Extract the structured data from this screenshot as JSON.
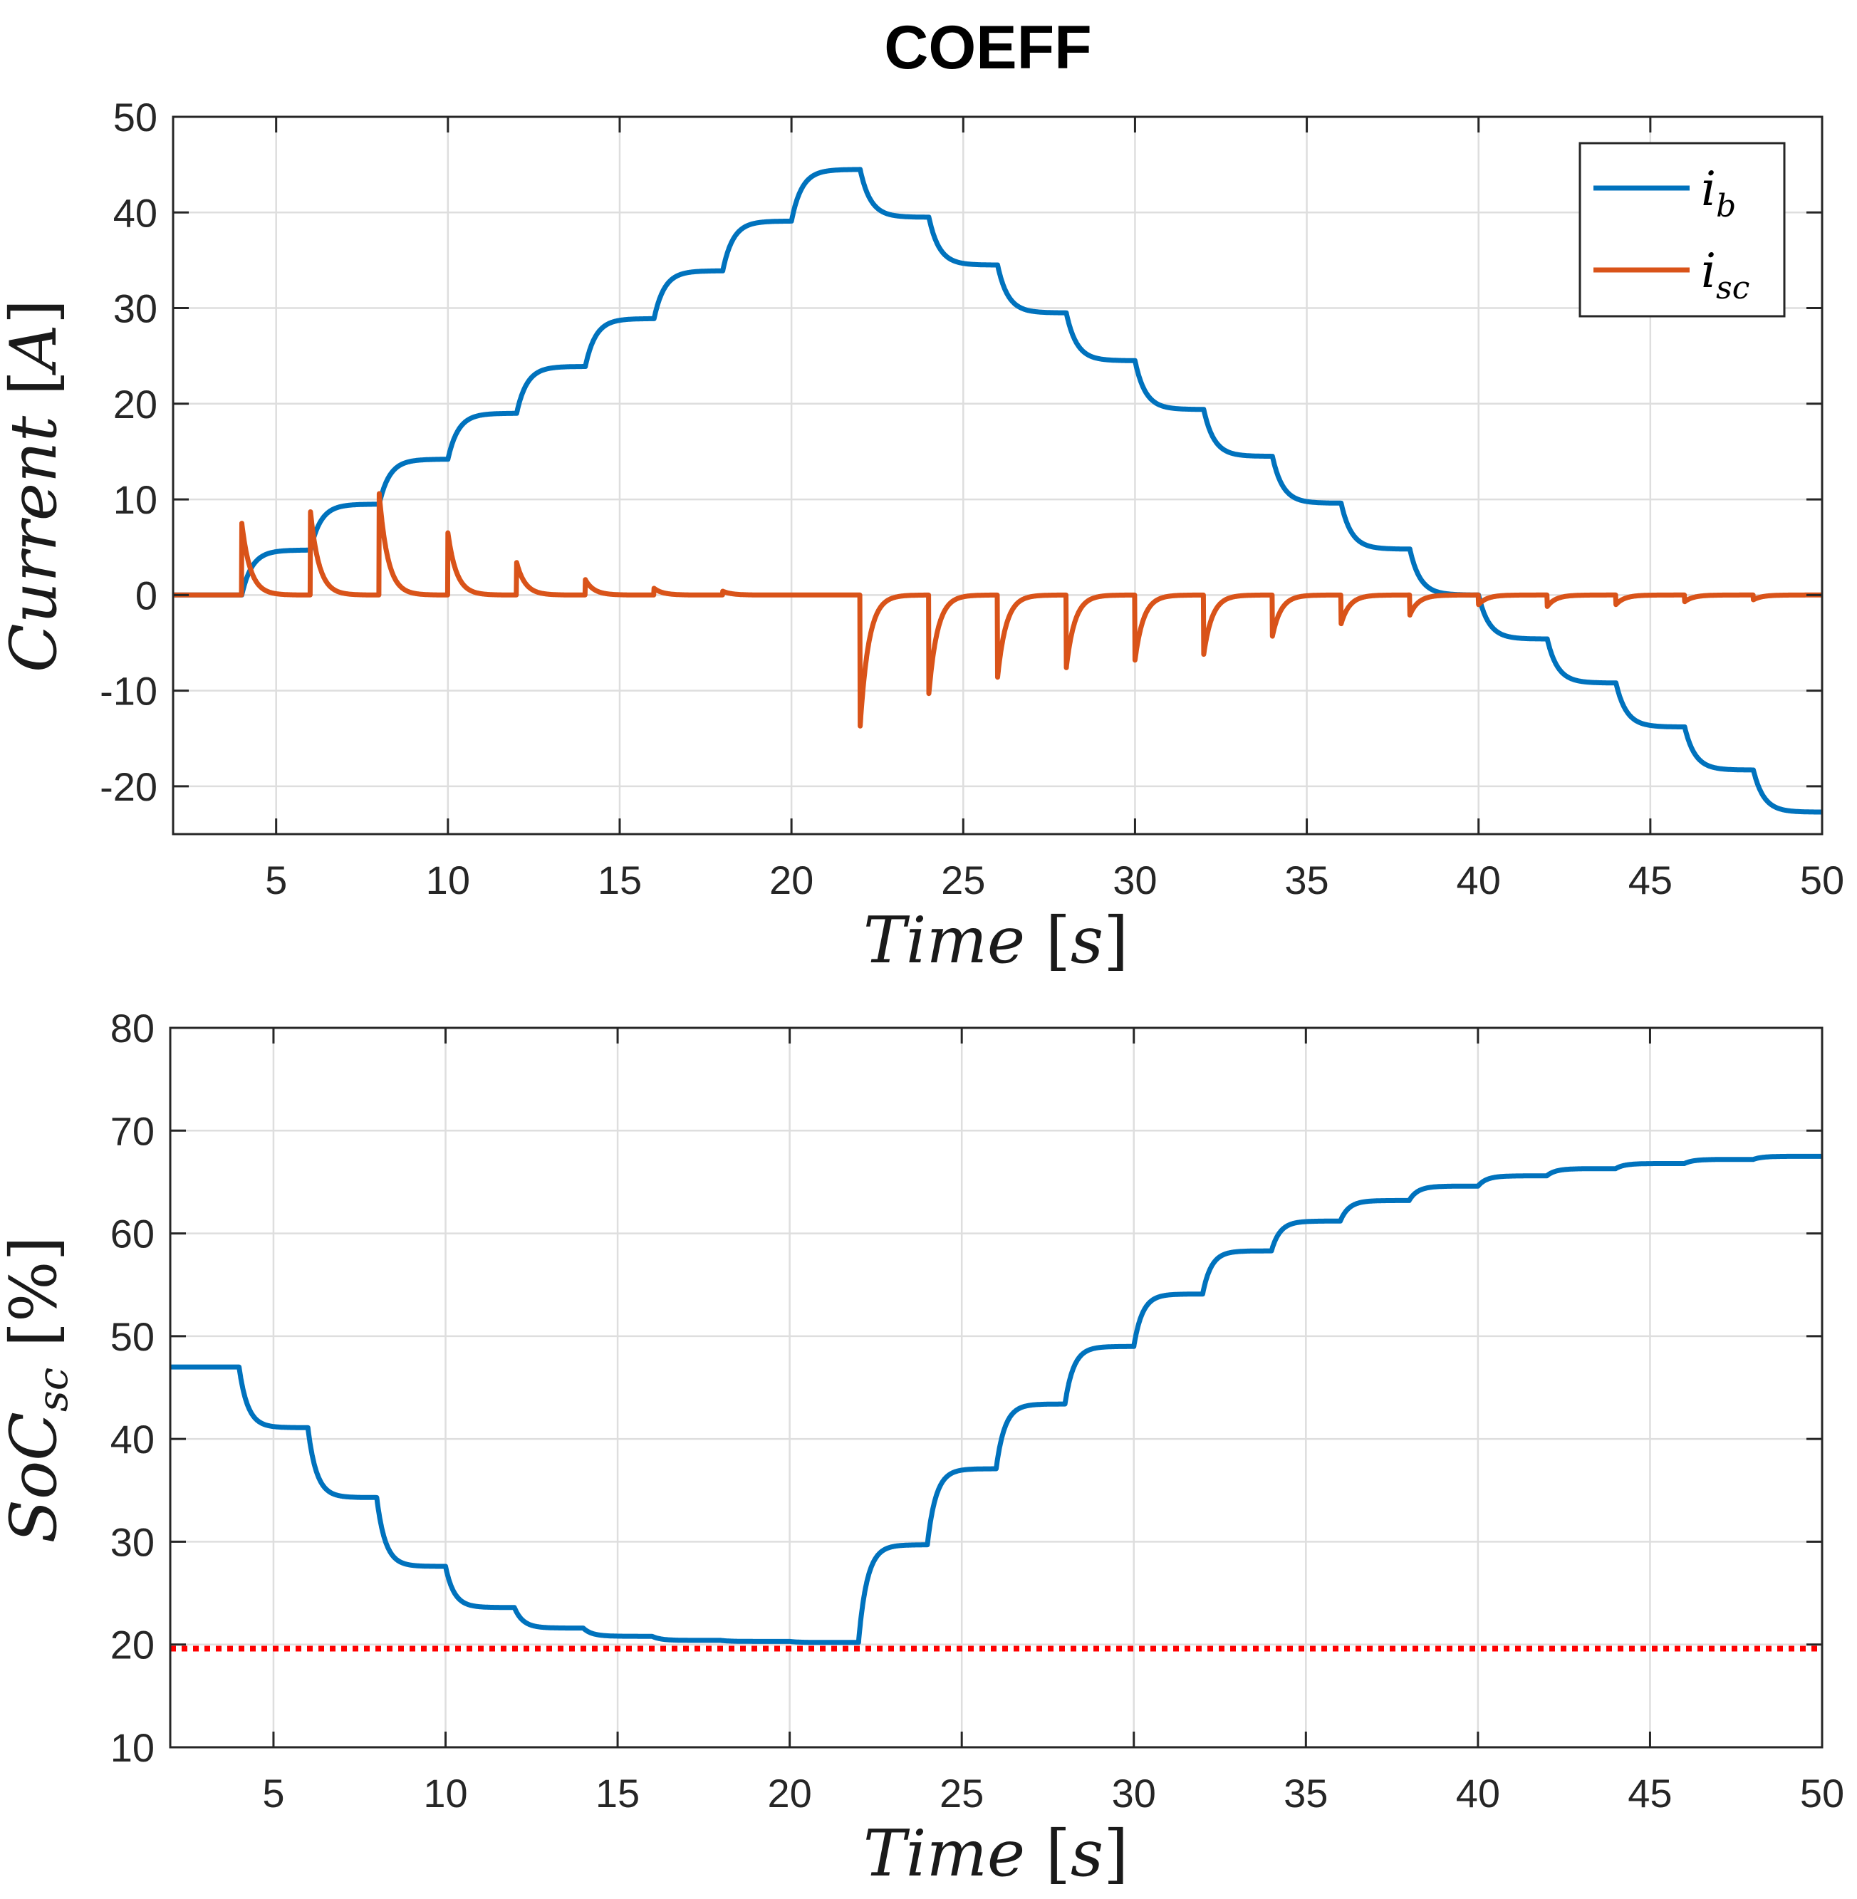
{
  "figure": {
    "title": "COEFF"
  },
  "chart_data": [
    {
      "type": "line",
      "xlabel": "Time [s]",
      "ylabel": "Current [A]",
      "xlim": [
        2,
        50
      ],
      "ylim": [
        -25,
        50
      ],
      "xticks": [
        "5",
        "10",
        "15",
        "20",
        "25",
        "30",
        "35",
        "40",
        "45",
        "50"
      ],
      "yticks": [
        "50",
        "40",
        "30",
        "20",
        "10",
        "0",
        "-10",
        "-20"
      ],
      "grid": true,
      "legend_position": "top-right",
      "series": [
        {
          "name": "i_b",
          "legend_base": "i",
          "legend_sub": "b",
          "color": "#0072BD",
          "kind": "step_first_order",
          "start_value": 0,
          "tau": 0.3,
          "steps": [
            [
              4,
              4.7
            ],
            [
              6,
              9.5
            ],
            [
              8,
              14.2
            ],
            [
              10,
              19.0
            ],
            [
              12,
              23.9
            ],
            [
              14,
              28.9
            ],
            [
              16,
              33.9
            ],
            [
              18,
              39.1
            ],
            [
              20,
              44.5
            ],
            [
              22,
              39.5
            ],
            [
              24,
              34.5
            ],
            [
              26,
              29.5
            ],
            [
              28,
              24.5
            ],
            [
              30,
              19.4
            ],
            [
              32,
              14.5
            ],
            [
              34,
              9.6
            ],
            [
              36,
              4.8
            ],
            [
              38,
              0
            ],
            [
              40,
              -4.6
            ],
            [
              42,
              -9.2
            ],
            [
              44,
              -13.8
            ],
            [
              46,
              -18.3
            ],
            [
              48,
              -22.7
            ]
          ]
        },
        {
          "name": "i_sc",
          "legend_base": "i",
          "legend_sub": "sc",
          "color": "#D95319",
          "kind": "spikes",
          "tau": 0.25,
          "spikes": [
            [
              4,
              7.5
            ],
            [
              6,
              8.7
            ],
            [
              8,
              10.6
            ],
            [
              10,
              6.5
            ],
            [
              12,
              3.4
            ],
            [
              14,
              1.6
            ],
            [
              16,
              0.7
            ],
            [
              18,
              0.4
            ],
            [
              22,
              -13.7
            ],
            [
              24,
              -10.3
            ],
            [
              26,
              -8.6
            ],
            [
              28,
              -7.6
            ],
            [
              30,
              -6.8
            ],
            [
              32,
              -6.2
            ],
            [
              34,
              -4.3
            ],
            [
              36,
              -3.0
            ],
            [
              38,
              -2.1
            ],
            [
              40,
              -1.0
            ],
            [
              42,
              -1.2
            ],
            [
              44,
              -1.0
            ],
            [
              46,
              -0.7
            ],
            [
              48,
              -0.5
            ]
          ]
        }
      ]
    },
    {
      "type": "line",
      "xlabel": "Time [s]",
      "ylabel": "SoC_sc [%]",
      "xlim": [
        2,
        50
      ],
      "ylim": [
        10,
        80
      ],
      "xticks": [
        "5",
        "10",
        "15",
        "20",
        "25",
        "30",
        "35",
        "40",
        "45",
        "50"
      ],
      "yticks": [
        "80",
        "70",
        "60",
        "50",
        "40",
        "30",
        "20",
        "10"
      ],
      "grid": true,
      "series": [
        {
          "color": "#0072BD",
          "kind": "step_first_order",
          "start_value": 47,
          "tau": 0.25,
          "steps": [
            [
              4,
              41.1
            ],
            [
              6,
              34.3
            ],
            [
              8,
              27.6
            ],
            [
              10,
              23.6
            ],
            [
              12,
              21.6
            ],
            [
              14,
              20.8
            ],
            [
              16,
              20.4
            ],
            [
              18,
              20.3
            ],
            [
              20,
              20.2
            ],
            [
              22,
              29.7
            ],
            [
              24,
              37.1
            ],
            [
              26,
              43.4
            ],
            [
              28,
              49.0
            ],
            [
              30,
              54.1
            ],
            [
              32,
              58.3
            ],
            [
              34,
              61.2
            ],
            [
              36,
              63.2
            ],
            [
              38,
              64.6
            ],
            [
              40,
              65.6
            ],
            [
              42,
              66.3
            ],
            [
              44,
              66.8
            ],
            [
              46,
              67.2
            ],
            [
              48,
              67.5
            ]
          ]
        },
        {
          "color": "#FF0000",
          "kind": "constant",
          "style": "dotted",
          "value": 19.6
        }
      ]
    }
  ]
}
